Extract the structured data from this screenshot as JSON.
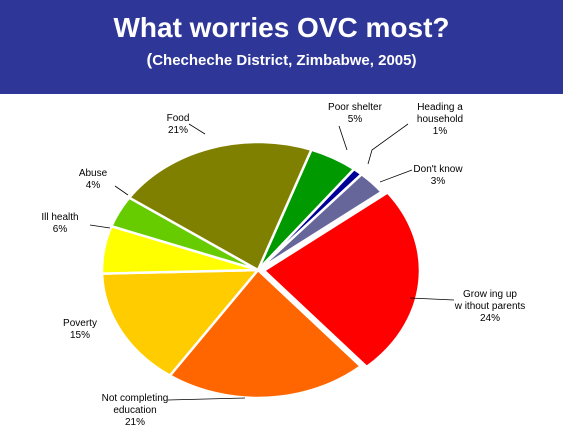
{
  "header": {
    "title": "What worries OVC most?",
    "subtitle": "Checheche District, Zimbabwe, 2005",
    "subtitle_open": "(",
    "subtitle_close": ")"
  },
  "chart_data": {
    "type": "pie",
    "title": "What worries OVC most?",
    "subtitle": "(Checheche District, Zimbabwe, 2005)",
    "slices": [
      {
        "label_lines": [
          "Poor shelter",
          "5%"
        ],
        "value": 5,
        "color": "#009900"
      },
      {
        "label_lines": [
          "Heading a",
          "household",
          "1%"
        ],
        "value": 1,
        "color": "#000099"
      },
      {
        "label_lines": [
          "Don't know",
          "3%"
        ],
        "value": 3,
        "color": "#66669a"
      },
      {
        "label_lines": [
          "Grow ing up",
          "w ithout parents",
          "24%"
        ],
        "value": 24,
        "color": "#ff0000"
      },
      {
        "label_lines": [
          "Not completing",
          "education",
          "21%"
        ],
        "value": 21,
        "color": "#ff6600"
      },
      {
        "label_lines": [
          "Poverty",
          "15%"
        ],
        "value": 15,
        "color": "#ffcc00"
      },
      {
        "label_lines": [
          "Ill health",
          "6%"
        ],
        "value": 6,
        "color": "#ffff00"
      },
      {
        "label_lines": [
          "Abuse",
          "4%"
        ],
        "value": 4,
        "color": "#66cc00"
      },
      {
        "label_lines": [
          "Food",
          "21%"
        ],
        "value": 21,
        "color": "#808000"
      }
    ]
  }
}
